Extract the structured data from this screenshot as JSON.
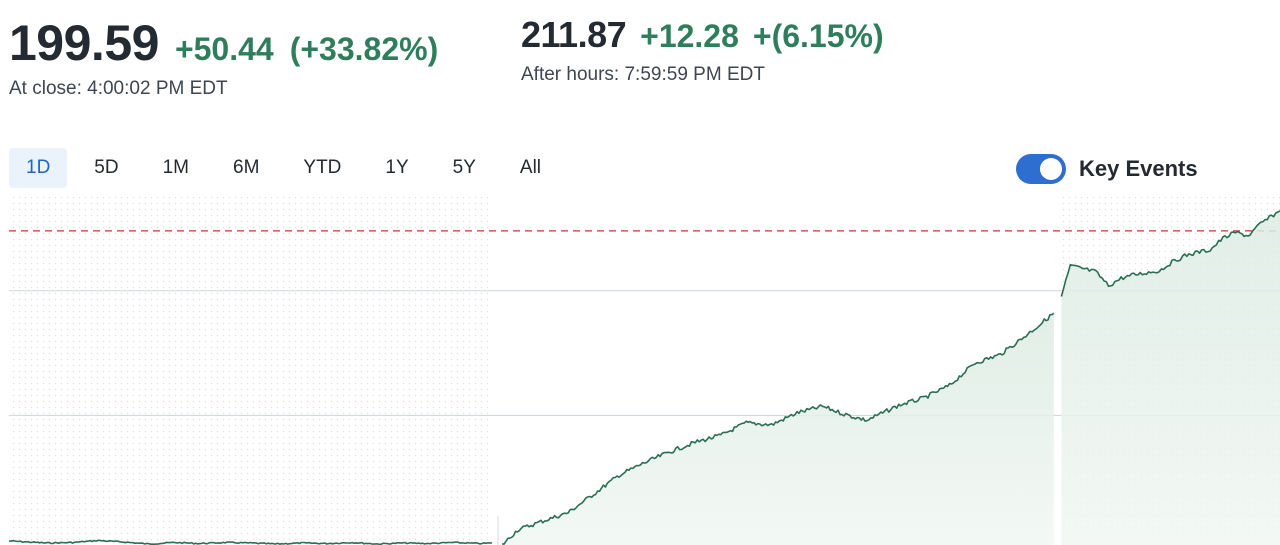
{
  "quote": {
    "close": {
      "price": "199.59",
      "change": "+50.44",
      "change_pct": "(+33.82%)",
      "label": "At close: 4:00:02 PM EDT"
    },
    "after_hours": {
      "price": "211.87",
      "change": "+12.28",
      "change_pct": "+(6.15%)",
      "label": "After hours: 7:59:59 PM EDT",
      "icon": "moon-icon"
    }
  },
  "ranges": [
    {
      "label": "1D",
      "active": true
    },
    {
      "label": "5D",
      "active": false
    },
    {
      "label": "1M",
      "active": false
    },
    {
      "label": "6M",
      "active": false
    },
    {
      "label": "YTD",
      "active": false
    },
    {
      "label": "1Y",
      "active": false
    },
    {
      "label": "5Y",
      "active": false
    },
    {
      "label": "All",
      "active": false
    }
  ],
  "key_events": {
    "label": "Key Events",
    "enabled": true
  },
  "colors": {
    "price_text": "#232a31",
    "gain": "#2e7d5b",
    "line": "#2a6f54",
    "area_fill": "#e3efe8",
    "reference_line": "#c0392b",
    "active_range_bg": "#eaf2fb",
    "active_range_text": "#1b66c9",
    "toggle_on": "#2f6ed1"
  },
  "chart_data": {
    "type": "area",
    "ylim": [
      144,
      214
    ],
    "previous_close": 207,
    "gridlines": [
      195,
      170
    ],
    "sessions": {
      "premarket_end_fraction": 0.38,
      "afterhours_start_fraction": 0.828
    },
    "series": [
      {
        "x": [
          0.0,
          0.015,
          0.03,
          0.05,
          0.07,
          0.09,
          0.11,
          0.13,
          0.15,
          0.17,
          0.19,
          0.21,
          0.23,
          0.25,
          0.27,
          0.29,
          0.31,
          0.33,
          0.35,
          0.37,
          0.38
        ],
        "y": [
          144.8,
          144.6,
          144.4,
          144.5,
          144.9,
          144.6,
          144.2,
          144.5,
          144.3,
          144.5,
          144.4,
          144.2,
          144.4,
          144.3,
          144.5,
          144.2,
          144.4,
          144.3,
          144.5,
          144.3,
          144.4
        ]
      },
      {
        "x": [
          0.388,
          0.4,
          0.42,
          0.44,
          0.46,
          0.48,
          0.5,
          0.52,
          0.54,
          0.56,
          0.58,
          0.6,
          0.62,
          0.64,
          0.66,
          0.675,
          0.7,
          0.72,
          0.74,
          0.76,
          0.78,
          0.8,
          0.81,
          0.822
        ],
        "y": [
          144.0,
          147.0,
          148.8,
          150.5,
          154.2,
          158.0,
          160.5,
          162.7,
          164.6,
          166.0,
          168.5,
          168.1,
          170.5,
          171.8,
          170.0,
          169.0,
          172.0,
          173.5,
          176.0,
          180.5,
          182.2,
          186.0,
          188.0,
          190.5
        ]
      },
      {
        "x": [
          0.828,
          0.835,
          0.845,
          0.855,
          0.865,
          0.875,
          0.885,
          0.895,
          0.905,
          0.915,
          0.925,
          0.935,
          0.945,
          0.955,
          0.965,
          0.975,
          0.985,
          0.995,
          1.0
        ],
        "y": [
          193.8,
          200.0,
          199.4,
          198.8,
          196.0,
          197.5,
          198.2,
          198.6,
          199.0,
          200.7,
          202.0,
          202.7,
          203.2,
          205.5,
          206.7,
          206.0,
          208.5,
          210.2,
          211.0
        ]
      }
    ]
  }
}
